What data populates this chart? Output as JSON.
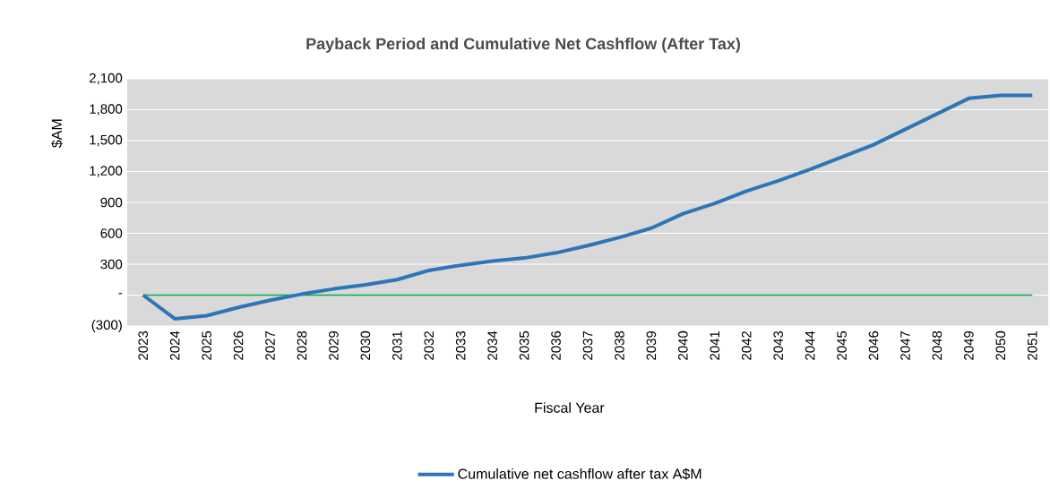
{
  "chart_data": {
    "type": "line",
    "title": "Payback Period and Cumulative Net Cashflow (After Tax)",
    "xlabel": "Fiscal Year",
    "ylabel": "$AM",
    "categories": [
      "2023",
      "2024",
      "2025",
      "2026",
      "2027",
      "2028",
      "2029",
      "2030",
      "2031",
      "2032",
      "2033",
      "2034",
      "2035",
      "2036",
      "2037",
      "2038",
      "2039",
      "2040",
      "2041",
      "2042",
      "2043",
      "2044",
      "2045",
      "2046",
      "2047",
      "2048",
      "2049",
      "2050",
      "2051"
    ],
    "series": [
      {
        "name": "Cumulative net cashflow after tax A$M",
        "color": "#2e75b6",
        "values": [
          0,
          -230,
          -200,
          -120,
          -50,
          10,
          60,
          100,
          150,
          240,
          290,
          330,
          360,
          410,
          480,
          560,
          650,
          790,
          890,
          1010,
          1110,
          1220,
          1340,
          1460,
          1610,
          1760,
          1910,
          1940,
          1940
        ]
      }
    ],
    "ylim": [
      -300,
      2100
    ],
    "yticks": [
      {
        "value": -300,
        "label": "(300)"
      },
      {
        "value": 0,
        "label": "-"
      },
      {
        "value": 300,
        "label": "300"
      },
      {
        "value": 600,
        "label": "600"
      },
      {
        "value": 900,
        "label": "900"
      },
      {
        "value": 1200,
        "label": "1,200"
      },
      {
        "value": 1500,
        "label": "1,500"
      },
      {
        "value": 1800,
        "label": "1,800"
      },
      {
        "value": 2100,
        "label": "2,100"
      }
    ],
    "ref_lines": [
      {
        "axis": "y",
        "value": 0,
        "color": "#00b050"
      }
    ],
    "grid": "y",
    "legend": "bottom",
    "marker": "none",
    "line_style": "solid"
  }
}
